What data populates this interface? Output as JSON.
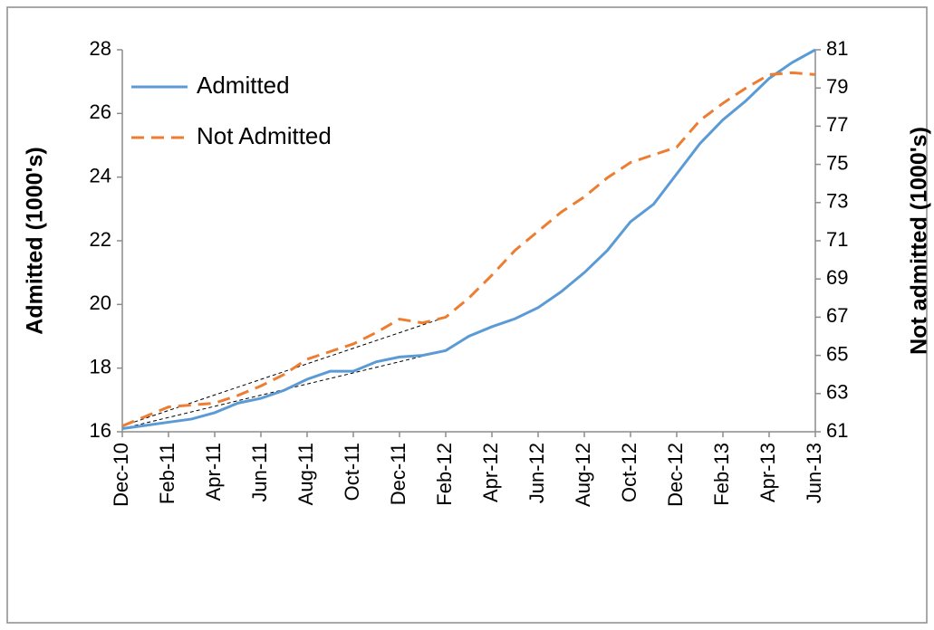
{
  "chart_data": {
    "type": "line",
    "categories": [
      "Dec-10",
      null,
      "Feb-11",
      null,
      "Apr-11",
      null,
      "Jun-11",
      null,
      "Aug-11",
      null,
      "Oct-11",
      null,
      "Dec-11",
      null,
      "Feb-12",
      null,
      "Apr-12",
      null,
      "Jun-12",
      null,
      "Aug-12",
      null,
      "Oct-12",
      null,
      "Dec-12",
      null,
      "Feb-13",
      null,
      "Apr-13",
      null,
      "Jun-13"
    ],
    "series": [
      {
        "name": "Admitted",
        "color": "#5b9bd5",
        "line_style": "solid",
        "axis": "y",
        "values": [
          16.1,
          16.2,
          16.3,
          16.4,
          16.6,
          16.9,
          17.05,
          17.3,
          17.65,
          17.9,
          17.9,
          18.2,
          18.35,
          18.4,
          18.55,
          19.0,
          19.3,
          19.55,
          19.9,
          20.4,
          21.0,
          21.7,
          22.6,
          23.15,
          24.1,
          25.05,
          25.8,
          26.4,
          27.1,
          27.6,
          28.0
        ]
      },
      {
        "name": "Not Admitted",
        "color": "#ed7d31",
        "line_style": "dashed",
        "axis": "y2",
        "values": [
          61.3,
          61.8,
          62.3,
          62.4,
          62.5,
          62.9,
          63.4,
          64.0,
          64.8,
          65.2,
          65.6,
          66.2,
          66.9,
          66.7,
          67.0,
          68.0,
          69.2,
          70.5,
          71.5,
          72.5,
          73.3,
          74.3,
          75.1,
          75.5,
          75.9,
          77.3,
          78.2,
          79.0,
          79.7,
          79.8,
          79.7
        ]
      }
    ],
    "y_label": "Admitted (1000's)",
    "y2_label": "Not admitted (1000's)",
    "ylim": [
      16,
      28
    ],
    "yticks": [
      16,
      18,
      20,
      22,
      24,
      26,
      28
    ],
    "y2lim": [
      61,
      81
    ],
    "y2ticks": [
      61,
      63,
      65,
      67,
      69,
      71,
      73,
      75,
      77,
      79,
      81
    ],
    "trend_lines": {
      "from": 0,
      "to": 14,
      "color": "#000000"
    },
    "legend": "upper left",
    "grid": false
  }
}
